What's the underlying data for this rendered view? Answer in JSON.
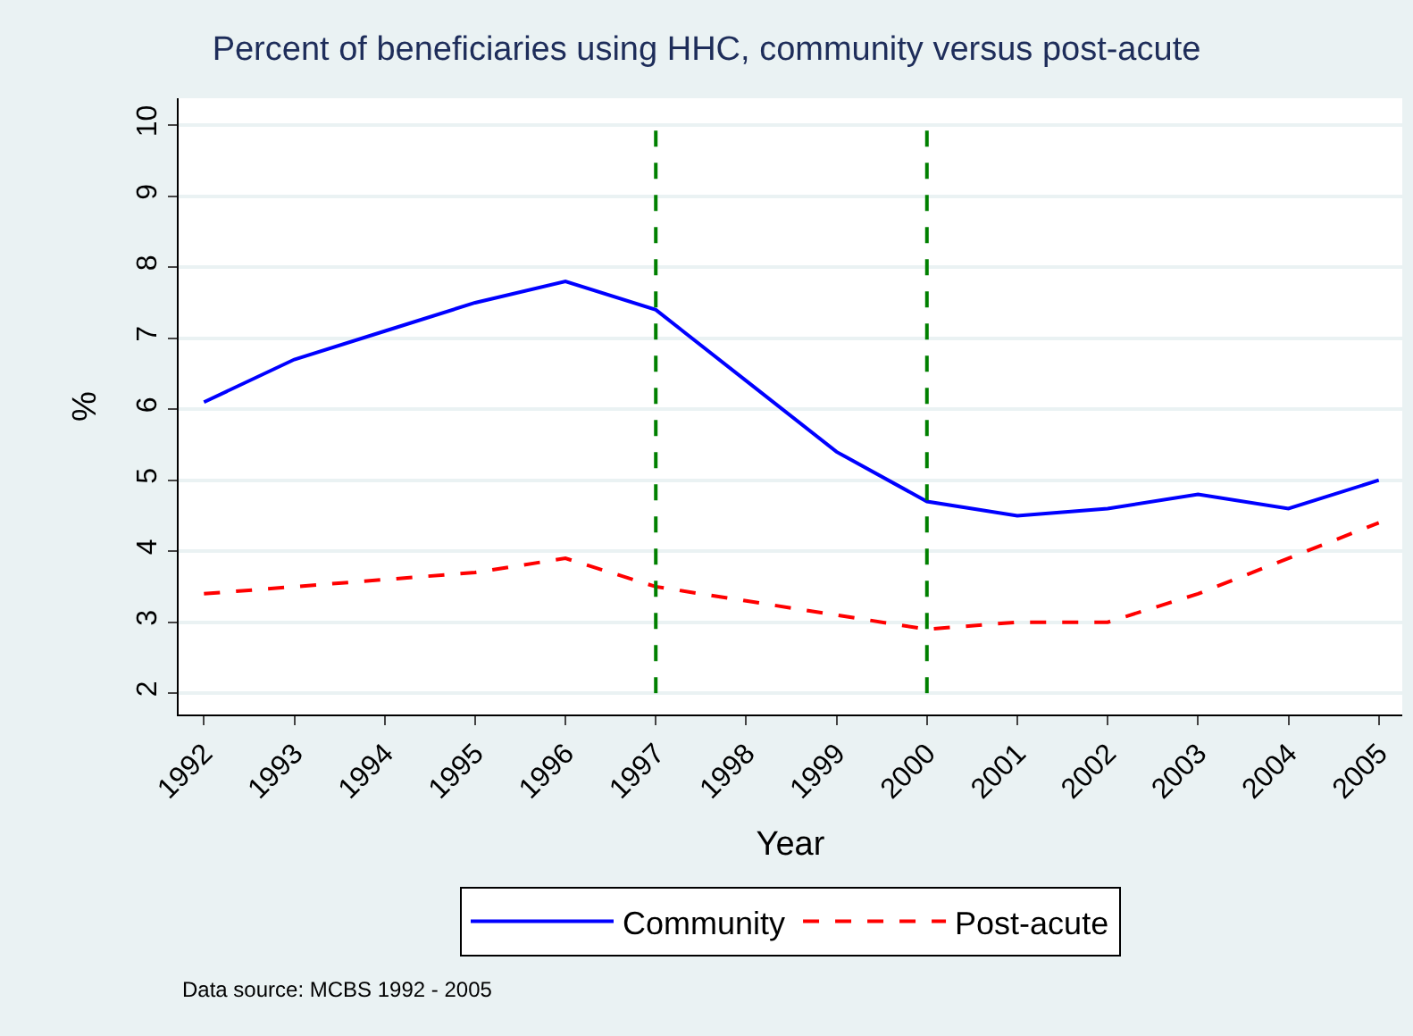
{
  "chart_data": {
    "type": "line",
    "title": "Percent of beneficiaries using HHC, community versus post-acute",
    "xlabel": "Year",
    "ylabel": "%",
    "x": [
      1992,
      1993,
      1994,
      1995,
      1996,
      1997,
      1998,
      1999,
      2000,
      2001,
      2002,
      2003,
      2004,
      2005
    ],
    "series": [
      {
        "name": "Community",
        "color": "#0000ff",
        "line_style": "solid",
        "values": [
          6.1,
          6.7,
          7.1,
          7.5,
          7.8,
          7.4,
          6.4,
          5.4,
          4.7,
          4.5,
          4.6,
          4.8,
          4.6,
          5.0
        ]
      },
      {
        "name": "Post-acute",
        "color": "#ff0000",
        "line_style": "dashed",
        "values": [
          3.4,
          3.5,
          3.6,
          3.7,
          3.9,
          3.5,
          3.3,
          3.1,
          2.9,
          3.0,
          3.0,
          3.4,
          3.9,
          4.4
        ]
      }
    ],
    "xlim": [
      1991.72,
      2005.26
    ],
    "xticks": [
      1992,
      1993,
      1994,
      1995,
      1996,
      1997,
      1998,
      1999,
      2000,
      2001,
      2002,
      2003,
      2004,
      2005
    ],
    "ylim": [
      1.7,
      10.38
    ],
    "yticks": [
      2,
      3,
      4,
      5,
      6,
      7,
      8,
      9,
      10
    ],
    "ref_lines": [
      {
        "axis": "x",
        "value": 1997,
        "color": "#008000",
        "line_style": "dashed"
      },
      {
        "axis": "x",
        "value": 2000,
        "color": "#008000",
        "line_style": "dashed"
      }
    ],
    "grid": "y",
    "legend": "bottom",
    "marker": "none",
    "annotations": [
      "Data source: MCBS 1992 - 2005"
    ]
  }
}
